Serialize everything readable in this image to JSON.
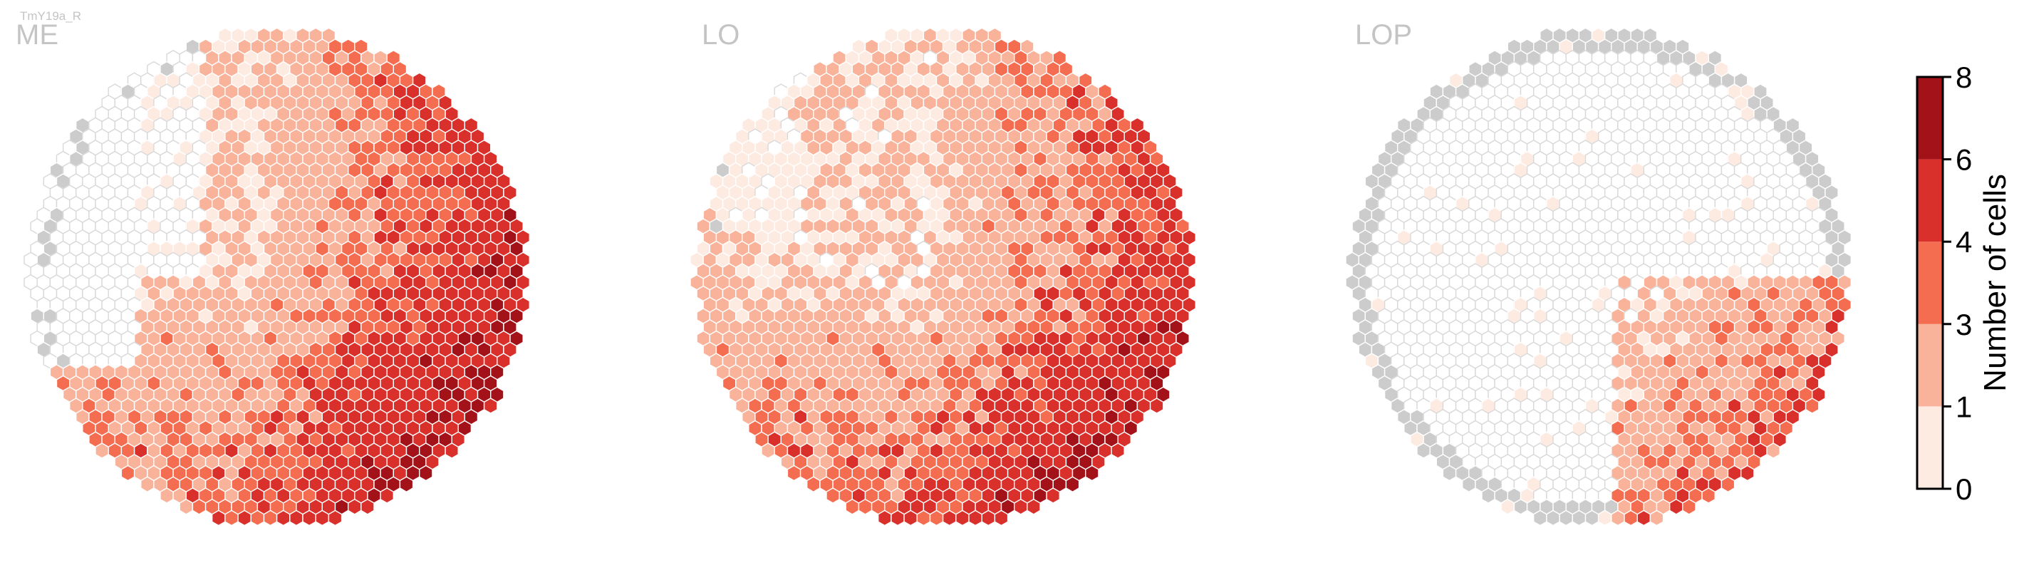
{
  "figure": {
    "supertitle": "TmY19a_R"
  },
  "chart_data": [
    {
      "type": "heatmap",
      "title": "ME",
      "grid": false,
      "layout": "hexagonal column grid",
      "visible_region": "columns with data are shaded; other columns drawn as white outlined hexagons",
      "color_scale": "Reds",
      "summary": "values increase toward the right (posterior) and lower edge; highest counts 6-8 along the right-lower rim"
    },
    {
      "type": "heatmap",
      "title": "LO",
      "grid": false,
      "layout": "hexagonal column grid",
      "color_scale": "Reds",
      "summary": "broad coverage; highest counts 6-8 in the right and lower-middle region; a few gray (out of neuropil) columns on the rim"
    },
    {
      "type": "heatmap",
      "title": "LOP",
      "grid": false,
      "layout": "hexagonal column grid",
      "color_scale": "Reds",
      "summary": "sparse coverage concentrated in the lower-right; many gray columns along the rim; max about 5"
    }
  ],
  "colorbar": {
    "label": "Number of cells",
    "ticks": [
      "0",
      "1",
      "3",
      "4",
      "6",
      "8"
    ],
    "levels": [
      {
        "from": 0,
        "to": 1,
        "color": "#fdebe2"
      },
      {
        "from": 1,
        "to": 3,
        "color": "#f9b39b"
      },
      {
        "from": 3,
        "to": 4,
        "color": "#f46d50"
      },
      {
        "from": 4,
        "to": 6,
        "color": "#d9302b"
      },
      {
        "from": 6,
        "to": 8,
        "color": "#a41219"
      }
    ]
  },
  "colors": {
    "empty_outline": "#d8d8d8",
    "out_of_neuropil": "#cccccc",
    "title_gray": "#c4c4c4"
  }
}
